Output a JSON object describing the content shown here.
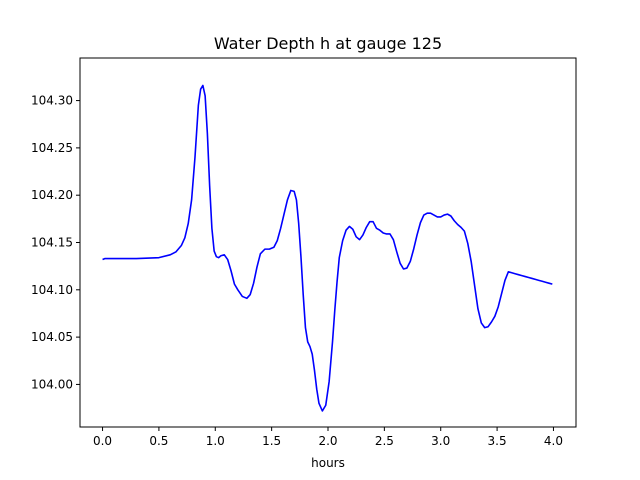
{
  "chart_data": {
    "type": "line",
    "title": "Water Depth h at gauge 125",
    "xlabel": "hours",
    "ylabel": "",
    "xlim": [
      -0.2,
      4.2
    ],
    "ylim": [
      103.955,
      104.345
    ],
    "x_ticks": [
      0.0,
      0.5,
      1.0,
      1.5,
      2.0,
      2.5,
      3.0,
      3.5,
      4.0
    ],
    "x_tick_labels": [
      "0.0",
      "0.5",
      "1.0",
      "1.5",
      "2.0",
      "2.5",
      "3.0",
      "3.5",
      "4.0"
    ],
    "y_ticks": [
      104.0,
      104.05,
      104.1,
      104.15,
      104.2,
      104.25,
      104.3
    ],
    "y_tick_labels": [
      "104.00",
      "104.05",
      "104.10",
      "104.15",
      "104.20",
      "104.25",
      "104.30"
    ],
    "grid": false,
    "series": [
      {
        "name": "",
        "color": "#0000ff",
        "x": [
          0.0,
          0.02,
          0.1,
          0.3,
          0.5,
          0.6,
          0.65,
          0.7,
          0.73,
          0.76,
          0.79,
          0.82,
          0.85,
          0.87,
          0.89,
          0.91,
          0.93,
          0.95,
          0.97,
          0.99,
          1.01,
          1.03,
          1.05,
          1.08,
          1.11,
          1.14,
          1.17,
          1.2,
          1.24,
          1.28,
          1.31,
          1.34,
          1.37,
          1.4,
          1.44,
          1.48,
          1.52,
          1.55,
          1.58,
          1.61,
          1.64,
          1.67,
          1.7,
          1.72,
          1.74,
          1.76,
          1.78,
          1.8,
          1.82,
          1.84,
          1.86,
          1.88,
          1.9,
          1.92,
          1.95,
          1.98,
          2.01,
          2.04,
          2.06,
          2.08,
          2.1,
          2.13,
          2.16,
          2.19,
          2.22,
          2.25,
          2.28,
          2.31,
          2.34,
          2.37,
          2.4,
          2.43,
          2.46,
          2.49,
          2.52,
          2.55,
          2.58,
          2.61,
          2.64,
          2.67,
          2.7,
          2.73,
          2.76,
          2.79,
          2.82,
          2.85,
          2.88,
          2.91,
          2.94,
          2.97,
          3.0,
          3.03,
          3.06,
          3.09,
          3.12,
          3.15,
          3.18,
          3.21,
          3.24,
          3.27,
          3.3,
          3.33,
          3.36,
          3.39,
          3.42,
          3.45,
          3.48,
          3.51,
          3.54,
          3.57,
          3.6,
          3.63,
          3.66,
          3.69,
          3.72,
          3.75,
          3.78,
          3.81,
          3.84,
          3.87,
          3.9,
          3.93,
          3.96,
          3.99
        ],
        "y": [
          104.132,
          104.133,
          104.133,
          104.133,
          104.134,
          104.137,
          104.14,
          104.147,
          104.155,
          104.17,
          104.195,
          104.24,
          104.295,
          104.312,
          104.316,
          104.305,
          104.265,
          104.21,
          104.165,
          104.141,
          104.135,
          104.134,
          104.136,
          104.137,
          104.132,
          104.12,
          104.106,
          104.1,
          104.093,
          104.091,
          104.095,
          104.107,
          104.124,
          104.138,
          104.143,
          104.143,
          104.145,
          104.152,
          104.165,
          104.18,
          104.195,
          104.205,
          104.204,
          104.195,
          104.17,
          104.135,
          104.095,
          104.06,
          104.045,
          104.04,
          104.032,
          104.015,
          103.995,
          103.98,
          103.972,
          103.978,
          104.003,
          104.045,
          104.078,
          104.108,
          104.134,
          104.152,
          104.163,
          104.167,
          104.164,
          104.156,
          104.153,
          104.158,
          104.166,
          104.172,
          104.172,
          104.165,
          104.163,
          104.16,
          104.159,
          104.159,
          104.153,
          104.14,
          104.128,
          104.122,
          104.123,
          104.13,
          104.143,
          104.158,
          104.171,
          104.179,
          104.181,
          104.181,
          104.179,
          104.177,
          104.177,
          104.179,
          104.18,
          104.178,
          104.173,
          104.169,
          104.166,
          104.162,
          104.149,
          104.13,
          104.105,
          104.08,
          104.065,
          104.06,
          104.061,
          104.066,
          104.072,
          104.082,
          104.096,
          104.11,
          104.119,
          104.118,
          104.117,
          104.116,
          104.115,
          104.114,
          104.113,
          104.112,
          104.111,
          104.11,
          104.109,
          104.108,
          104.107,
          104.106
        ]
      }
    ]
  }
}
